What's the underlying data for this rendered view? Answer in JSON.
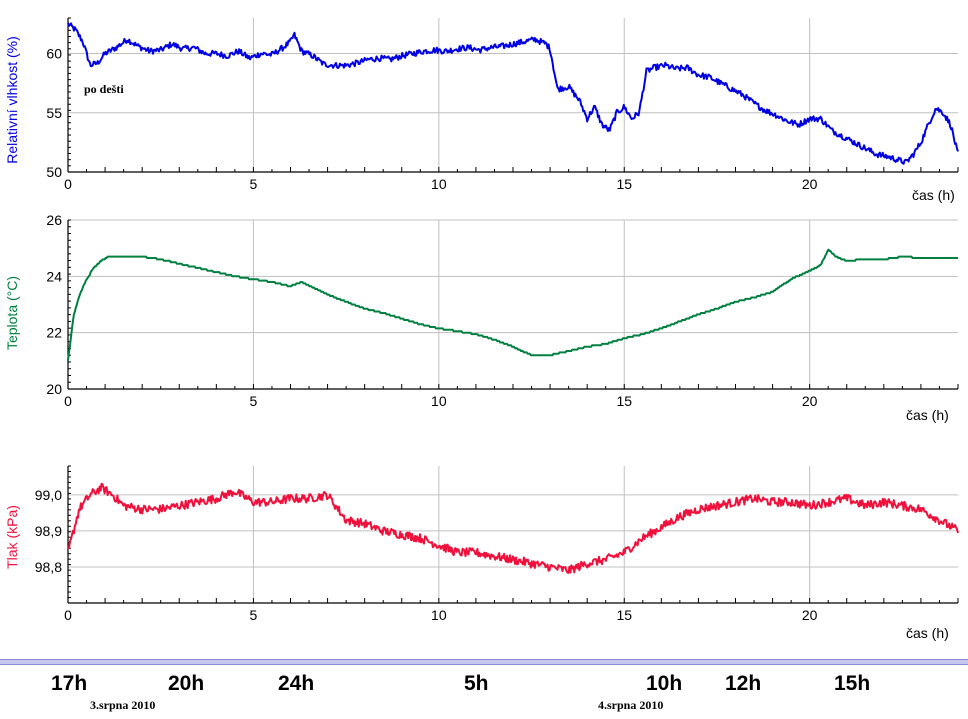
{
  "chart_data": [
    {
      "type": "line",
      "ylabel": "Relativní vlhkost (%)",
      "xlabel": "čas (h)",
      "xlim": [
        0,
        24
      ],
      "ylim": [
        50,
        63
      ],
      "xticks": [
        "0",
        "5",
        "10",
        "15",
        "20"
      ],
      "yticks": [
        "50",
        "55",
        "60"
      ],
      "grid": true,
      "color": "#0000e0",
      "annotation": "po dešti",
      "series": [
        {
          "x": [
            0,
            0.2,
            0.4,
            0.6,
            0.8,
            1.0,
            1.3,
            1.6,
            1.9,
            2.2,
            2.5,
            2.8,
            3.1,
            3.4,
            3.7,
            4.0,
            4.3,
            4.6,
            4.9,
            5.2,
            5.5,
            5.8,
            6.0,
            6.1,
            6.3,
            6.6,
            6.9,
            7.2,
            7.5,
            7.8,
            8.1,
            8.4,
            8.7,
            9.0,
            9.3,
            9.6,
            9.9,
            10.2,
            10.5,
            10.8,
            11.1,
            11.4,
            11.7,
            12.0,
            12.3,
            12.6,
            12.9,
            13.0,
            13.2,
            13.5,
            13.8,
            14.0,
            14.2,
            14.4,
            14.6,
            14.8,
            15.0,
            15.2,
            15.4,
            15.6,
            15.8,
            16.1,
            16.4,
            16.7,
            17.0,
            17.3,
            17.6,
            17.9,
            18.2,
            18.5,
            18.8,
            19.1,
            19.4,
            19.7,
            20.0,
            20.3,
            20.6,
            20.9,
            21.2,
            21.5,
            21.8,
            22.1,
            22.4,
            22.6,
            22.8,
            23.0,
            23.2,
            23.4,
            23.6,
            23.8,
            24.0
          ],
          "y": [
            62.5,
            62.0,
            61.0,
            59.0,
            59.2,
            60.0,
            60.5,
            61.2,
            60.6,
            60.2,
            60.3,
            60.8,
            60.4,
            60.5,
            60.0,
            60.0,
            59.8,
            60.2,
            59.6,
            60.0,
            59.9,
            60.5,
            61.0,
            61.6,
            60.2,
            59.8,
            59.1,
            59.0,
            59.0,
            59.2,
            59.5,
            59.6,
            59.5,
            59.8,
            60.0,
            60.2,
            60.3,
            60.2,
            60.4,
            60.5,
            60.3,
            60.5,
            60.6,
            60.8,
            61.0,
            61.2,
            60.8,
            60.4,
            57.0,
            57.2,
            56.0,
            54.5,
            55.5,
            54.0,
            53.5,
            55.0,
            55.5,
            54.5,
            55.0,
            58.5,
            58.8,
            59.0,
            58.7,
            58.8,
            58.2,
            58.0,
            57.5,
            57.0,
            56.5,
            55.8,
            55.2,
            54.8,
            54.3,
            54.0,
            54.5,
            54.5,
            53.5,
            53.0,
            52.5,
            52.0,
            51.5,
            51.3,
            51.0,
            50.8,
            51.5,
            52.5,
            54.0,
            55.4,
            55.0,
            54.0,
            51.5
          ]
        }
      ]
    },
    {
      "type": "line",
      "ylabel": "Teplota (°C)",
      "xlabel": "čas (h)",
      "xlim": [
        0,
        24
      ],
      "ylim": [
        20,
        26
      ],
      "xticks": [
        "0",
        "5",
        "10",
        "15",
        "20"
      ],
      "yticks": [
        "20",
        "22",
        "24",
        "26"
      ],
      "grid": true,
      "color": "#008040",
      "series": [
        {
          "x": [
            0,
            0.15,
            0.3,
            0.5,
            0.7,
            0.9,
            1.1,
            1.5,
            2.0,
            2.5,
            3.0,
            3.5,
            4.0,
            4.5,
            5.0,
            5.5,
            6.0,
            6.3,
            6.6,
            7.0,
            7.5,
            8.0,
            8.5,
            9.0,
            9.5,
            10.0,
            10.5,
            11.0,
            11.5,
            12.0,
            12.5,
            13.0,
            13.5,
            14.0,
            14.5,
            15.0,
            15.5,
            16.0,
            16.5,
            17.0,
            17.5,
            18.0,
            18.5,
            19.0,
            19.5,
            20.0,
            20.3,
            20.5,
            20.7,
            21.0,
            21.5,
            22.0,
            22.5,
            23.0,
            23.5,
            24.0
          ],
          "y": [
            21.0,
            22.6,
            23.3,
            23.9,
            24.3,
            24.55,
            24.7,
            24.7,
            24.7,
            24.6,
            24.45,
            24.3,
            24.15,
            24.0,
            23.9,
            23.8,
            23.65,
            23.8,
            23.6,
            23.35,
            23.1,
            22.85,
            22.7,
            22.5,
            22.3,
            22.15,
            22.05,
            21.95,
            21.75,
            21.5,
            21.2,
            21.2,
            21.35,
            21.5,
            21.6,
            21.8,
            21.95,
            22.15,
            22.4,
            22.65,
            22.85,
            23.1,
            23.25,
            23.45,
            23.9,
            24.2,
            24.4,
            24.95,
            24.7,
            24.55,
            24.6,
            24.6,
            24.7,
            24.65,
            24.65,
            24.65
          ]
        }
      ]
    },
    {
      "type": "line",
      "ylabel": "Tlak (kPa)",
      "xlabel": "čas (h)",
      "xlim": [
        0,
        24
      ],
      "ylim": [
        98.7,
        99.08
      ],
      "xticks": [
        "0",
        "5",
        "10",
        "15",
        "20"
      ],
      "yticks": [
        "98,8",
        "98,9",
        "99,0"
      ],
      "grid": true,
      "color": "#f0103c",
      "series": [
        {
          "x": [
            0,
            0.3,
            0.6,
            0.9,
            1.2,
            1.5,
            2.0,
            2.5,
            3.0,
            3.5,
            4.0,
            4.5,
            5.0,
            5.5,
            6.0,
            6.5,
            7.0,
            7.5,
            8.0,
            8.5,
            9.0,
            9.5,
            10.0,
            10.5,
            11.0,
            11.5,
            12.0,
            12.5,
            13.0,
            13.5,
            14.0,
            14.5,
            15.0,
            15.5,
            16.0,
            16.5,
            17.0,
            17.5,
            18.0,
            18.5,
            19.0,
            19.5,
            20.0,
            20.5,
            21.0,
            21.5,
            22.0,
            22.5,
            23.0,
            23.5,
            24.0
          ],
          "y": [
            98.84,
            98.96,
            99.0,
            99.02,
            99.0,
            98.97,
            98.96,
            98.96,
            98.97,
            98.98,
            98.99,
            99.01,
            98.98,
            98.98,
            98.99,
            98.99,
            99.0,
            98.93,
            98.92,
            98.9,
            98.89,
            98.88,
            98.86,
            98.84,
            98.84,
            98.83,
            98.82,
            98.81,
            98.8,
            98.79,
            98.81,
            98.82,
            98.84,
            98.88,
            98.91,
            98.94,
            98.96,
            98.97,
            98.98,
            98.99,
            98.98,
            98.98,
            98.97,
            98.98,
            98.99,
            98.97,
            98.98,
            98.97,
            98.96,
            98.93,
            98.9
          ]
        }
      ]
    }
  ],
  "timeline": {
    "times": [
      "17h",
      "20h",
      "24h",
      "5h",
      "10h",
      "12h",
      "15h"
    ],
    "dates": [
      "3.srpna 2010",
      "4.srpna 2010"
    ]
  }
}
